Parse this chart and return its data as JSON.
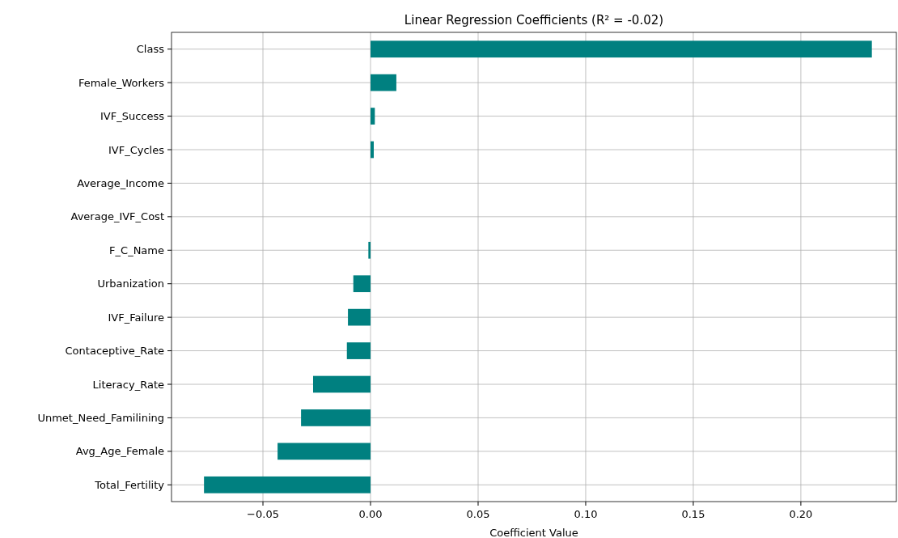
{
  "chart_data": {
    "type": "bar",
    "orientation": "horizontal",
    "title": "Linear Regression Coefficients (R² = -0.02)",
    "xlabel": "Coefficient Value",
    "categories": [
      "Class",
      "Female_Workers",
      "IVF_Success",
      "IVF_Cycles",
      "Average_Income",
      "Average_IVF_Cost",
      "F_C_Name",
      "Urbanization",
      "IVF_Failure",
      "Contaceptive_Rate",
      "Literacy_Rate",
      "Unmet_Need_Familining",
      "Avg_Age_Female",
      "Total_Fertility"
    ],
    "values": [
      0.233,
      0.012,
      0.002,
      0.0015,
      0,
      0,
      -0.001,
      -0.008,
      -0.0105,
      -0.011,
      -0.0267,
      -0.0323,
      -0.0432,
      -0.0774
    ],
    "color": "#008080",
    "xlim": [
      -0.0925,
      0.2444
    ],
    "xticks": [
      {
        "value": -0.05,
        "label": "−0.05"
      },
      {
        "value": 0,
        "label": "0.00"
      },
      {
        "value": 0.05,
        "label": "0.05"
      },
      {
        "value": 0.1,
        "label": "0.10"
      },
      {
        "value": 0.15,
        "label": "0.15"
      },
      {
        "value": 0.2,
        "label": "0.20"
      }
    ],
    "grid": true
  }
}
